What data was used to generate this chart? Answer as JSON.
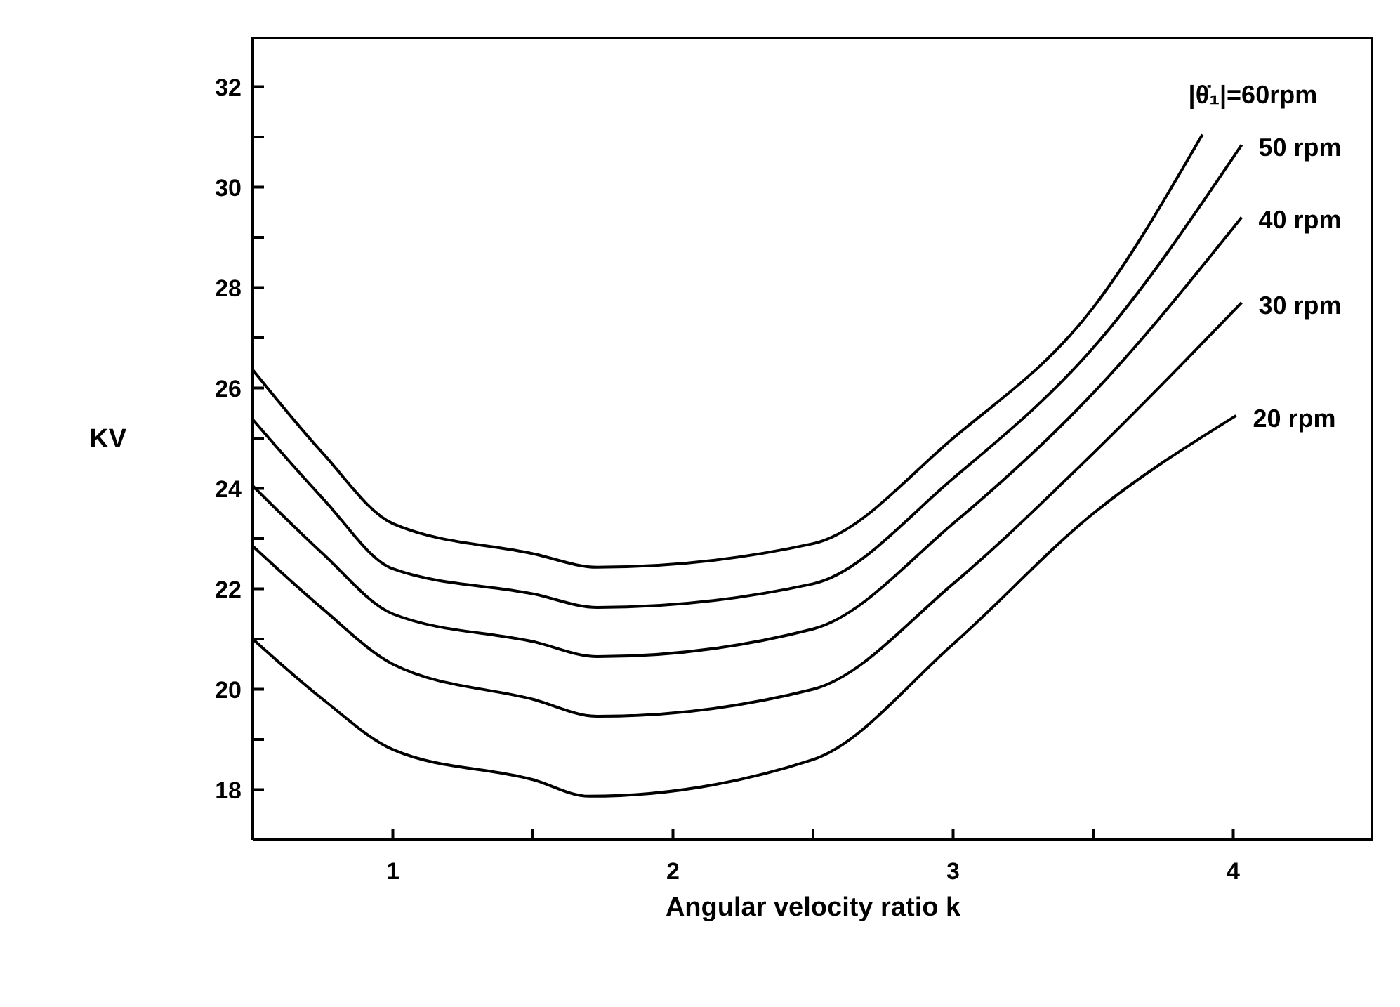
{
  "chart_data": {
    "type": "line",
    "xlabel": "Angular velocity ratio k",
    "ylabel": "KV",
    "series": [
      {
        "name": "20 rpm",
        "color": "#000000",
        "x": [
          0.5,
          0.75,
          1,
          1.5,
          1.7,
          2.5,
          3,
          3.5,
          4.01
        ],
        "values": [
          21.0,
          19.8,
          18.8,
          18.2,
          17.87,
          18.6,
          20.9,
          23.5,
          25.45
        ]
      },
      {
        "name": "30 rpm",
        "color": "#000000",
        "x": [
          0.5,
          0.75,
          1,
          1.5,
          1.73,
          2.5,
          3,
          3.5,
          4.03
        ],
        "values": [
          22.85,
          21.6,
          20.5,
          19.8,
          19.46,
          20.0,
          22.1,
          24.7,
          27.7
        ]
      },
      {
        "name": "40 rpm",
        "color": "#000000",
        "x": [
          0.5,
          0.75,
          1,
          1.5,
          1.73,
          2.5,
          3,
          3.5,
          4.03
        ],
        "values": [
          24.05,
          22.7,
          21.5,
          20.95,
          20.65,
          21.2,
          23.3,
          25.9,
          29.4
        ]
      },
      {
        "name": "50 rpm",
        "color": "#000000",
        "x": [
          0.5,
          0.75,
          1,
          1.5,
          1.73,
          2.5,
          3,
          3.5,
          4.03
        ],
        "values": [
          25.37,
          23.8,
          22.4,
          21.9,
          21.63,
          22.1,
          24.2,
          26.8,
          30.84
        ]
      },
      {
        "name": "|θ̇₁|=60rpm",
        "color": "#000000",
        "x": [
          0.5,
          0.75,
          1,
          1.5,
          1.73,
          2.5,
          3,
          3.5,
          3.89
        ],
        "values": [
          26.36,
          24.7,
          23.3,
          22.7,
          22.43,
          22.9,
          25.0,
          27.6,
          31.05
        ]
      }
    ],
    "xlim": [
      0.5,
      4.5
    ],
    "xticks": [
      1,
      {
        "value": 1.5,
        "label": null
      },
      2,
      {
        "value": 2.5,
        "label": null
      },
      3,
      {
        "value": 3.5,
        "label": null
      },
      4
    ],
    "ylim": [
      17,
      33
    ],
    "yticks": [
      18,
      {
        "value": 19,
        "label": null
      },
      20,
      {
        "value": 21,
        "label": null
      },
      22,
      {
        "value": 23,
        "label": null
      },
      24,
      {
        "value": 25,
        "label": null
      },
      26,
      {
        "value": 27,
        "label": null
      },
      28,
      {
        "value": 29,
        "label": null
      },
      30,
      {
        "value": 31,
        "label": null
      },
      32
    ],
    "grid": false,
    "legend": false,
    "marker": "none",
    "line_style": "solid"
  }
}
